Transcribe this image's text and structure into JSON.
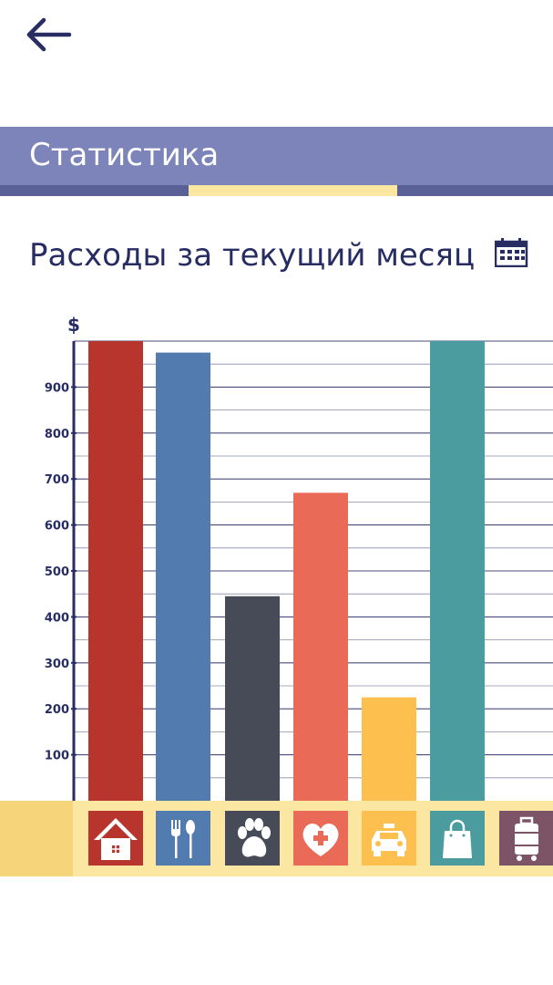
{
  "header": {
    "back_icon": "arrow-left-icon",
    "section_title": "Статистика"
  },
  "page": {
    "title": "Расходы за текущий месяц",
    "calendar_icon": "calendar-icon"
  },
  "colors": {
    "accent": "#7c84b9",
    "accent_dark": "#5a6196",
    "highlight": "#fbe6a2",
    "text": "#272d63"
  },
  "chart_data": {
    "type": "bar",
    "ylabel": "$",
    "ylim": [
      0,
      1000
    ],
    "yticks": [
      100,
      200,
      300,
      400,
      500,
      600,
      700,
      800,
      900
    ],
    "grid": true,
    "categories": [
      {
        "icon": "home-icon",
        "color": "#b8352d",
        "value": 1000
      },
      {
        "icon": "fork-spoon-icon",
        "color": "#527bb0",
        "value": 975
      },
      {
        "icon": "paw-icon",
        "color": "#464b57",
        "value": 445
      },
      {
        "icon": "medical-heart-icon",
        "color": "#ea6a58",
        "value": 670
      },
      {
        "icon": "taxi-icon",
        "color": "#fdbf4d",
        "value": 225
      },
      {
        "icon": "shopping-bag-icon",
        "color": "#4a9c9e",
        "value": 1000
      },
      {
        "icon": "luggage-icon",
        "color": "#7d5366",
        "value": null
      }
    ]
  }
}
